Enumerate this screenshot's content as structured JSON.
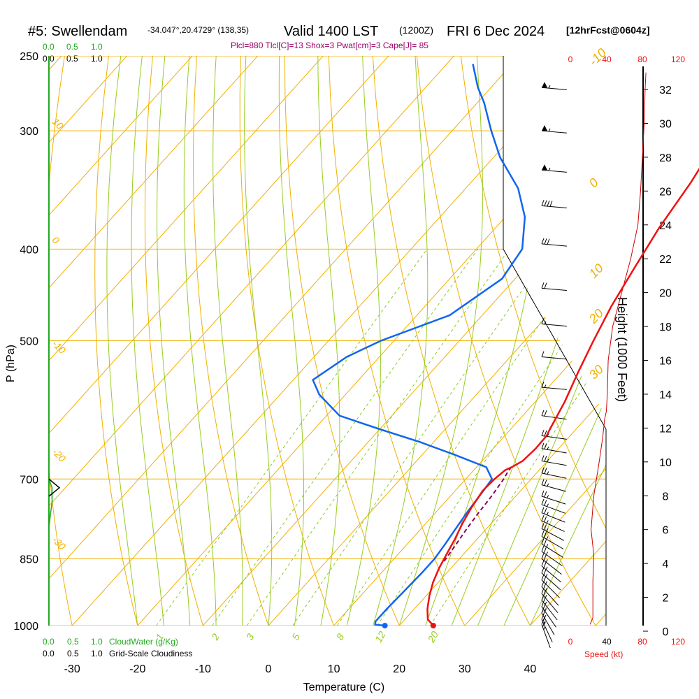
{
  "header": {
    "station": "#5: Swellendam",
    "coords": "-34.047°,20.4729° (138,35)",
    "valid": "Valid 1400 LST",
    "utc": "(1200Z)",
    "date": "FRI 6 Dec 2024",
    "forecast": "[12hrFcst@0604z]"
  },
  "params": "Plcl=880 Tlcl[C]=13 Shox=3 Pwat[cm]=3 Cape[J]= 85",
  "colors": {
    "temperature": "#ee1111",
    "dewpoint": "#1166ee",
    "parcel": "#880066",
    "isotherm": "#f0b000",
    "dry_adiabat": "#f0b000",
    "moist_adiabat": "#99cc22",
    "mixing_ratio": "#88cc22",
    "cloud_water": "#22aa22",
    "wind_speed": "#cc0000",
    "params_text": "#990066"
  },
  "chart_data": {
    "type": "line",
    "title": "#5: Swellendam -34.047°,20.4729° (138,35) Valid 1400 LST (1200Z) FRI 6 Dec 2024 [12hrFcst@0604z]",
    "xlabel": "Temperature (C)",
    "ylabel": "P (hPa)",
    "y2label": "Height (1000 Feet)",
    "x_ticks": [
      "-30",
      "-20",
      "-10",
      "0",
      "10",
      "20",
      "30",
      "40"
    ],
    "y_ticks": [
      "250",
      "300",
      "400",
      "500",
      "700",
      "850",
      "1000"
    ],
    "y2_ticks": [
      "0",
      "2",
      "4",
      "6",
      "8",
      "10",
      "12",
      "14",
      "16",
      "18",
      "20",
      "22",
      "24",
      "26",
      "28",
      "30",
      "32"
    ],
    "isotherm_labels": [
      "-10",
      "0",
      "10",
      "20",
      "30"
    ],
    "isotherm_label_temps": [
      -10,
      0,
      10,
      20,
      30
    ],
    "dry_adiabat_labels": [
      "10",
      "0",
      "-10",
      "-20",
      "-30"
    ],
    "mixing_ratio_labels": [
      "1",
      "2",
      "3",
      "5",
      "8",
      "12",
      "20"
    ],
    "mixing_ratio_values": [
      1,
      2,
      3,
      5,
      8,
      12,
      20
    ],
    "top_scale_green": [
      "0.0",
      "0.5",
      "1.0"
    ],
    "top_scale_black": [
      "0.0",
      "0.5",
      "1.0"
    ],
    "bottom_cloudwater": {
      "ticks": [
        "0.0",
        "0.5",
        "1.0"
      ],
      "label": "CloudWater (g/Kg)"
    },
    "bottom_cloudiness": {
      "ticks": [
        "0.0",
        "0.5",
        "1.0"
      ],
      "label": "Grid-Scale Cloudiness"
    },
    "speed_scale": {
      "ticks": [
        "0",
        "40",
        "80",
        "120"
      ],
      "label": "Speed (kt)"
    },
    "pressure_range": [
      250,
      1000
    ],
    "temp_range": [
      -33.5,
      45
    ],
    "series": [
      {
        "key": "temperature",
        "points": [
          [
            25.2,
            1000
          ],
          [
            23.5,
            985
          ],
          [
            22.0,
            960
          ],
          [
            20.5,
            930
          ],
          [
            19.2,
            900
          ],
          [
            18.2,
            870
          ],
          [
            17.4,
            840
          ],
          [
            16.6,
            810
          ],
          [
            15.6,
            780
          ],
          [
            14.8,
            750
          ],
          [
            14.2,
            720
          ],
          [
            14.4,
            700
          ],
          [
            14.8,
            685
          ],
          [
            15.4,
            680
          ],
          [
            16.2,
            670
          ],
          [
            16.5,
            650
          ],
          [
            16.4,
            630
          ],
          [
            16.0,
            620
          ],
          [
            14.5,
            580
          ],
          [
            12.5,
            540
          ],
          [
            10.5,
            500
          ],
          [
            8.5,
            460
          ],
          [
            6.8,
            420
          ],
          [
            5.0,
            380
          ],
          [
            3.6,
            340
          ],
          [
            2.0,
            310
          ],
          [
            -0.5,
            295
          ],
          [
            -3.5,
            282
          ],
          [
            -6.5,
            269
          ],
          [
            -10.0,
            256
          ]
        ]
      },
      {
        "key": "dewpoint",
        "points": [
          [
            17.8,
            1000
          ],
          [
            16.2,
            998
          ],
          [
            15.8,
            990
          ],
          [
            15.8,
            960
          ],
          [
            16.0,
            920
          ],
          [
            16.2,
            880
          ],
          [
            16.2,
            850
          ],
          [
            15.8,
            820
          ],
          [
            15.3,
            790
          ],
          [
            14.8,
            760
          ],
          [
            14.3,
            720
          ],
          [
            14.0,
            700
          ],
          [
            11.5,
            680
          ],
          [
            5.0,
            660
          ],
          [
            -2.0,
            640
          ],
          [
            -10.0,
            620
          ],
          [
            -18.0,
            600
          ],
          [
            -24.0,
            570
          ],
          [
            -27.0,
            550
          ],
          [
            -25.0,
            520
          ],
          [
            -22.0,
            500
          ],
          [
            -15.0,
            470
          ],
          [
            -12.0,
            430
          ],
          [
            -13.0,
            400
          ],
          [
            -17.0,
            370
          ],
          [
            -22.0,
            345
          ],
          [
            -29.0,
            320
          ],
          [
            -34.0,
            300
          ],
          [
            -39.0,
            280
          ],
          [
            -42.0,
            270
          ],
          [
            -46.0,
            255
          ]
        ]
      },
      {
        "key": "parcel",
        "points": [
          [
            18.0,
            855
          ],
          [
            17.5,
            820
          ],
          [
            17.0,
            790
          ],
          [
            16.6,
            760
          ],
          [
            16.3,
            730
          ],
          [
            15.8,
            700
          ],
          [
            15.5,
            690
          ],
          [
            15.3,
            680
          ]
        ]
      },
      {
        "key": "wind_speed",
        "note": "speed in kt, height in kft",
        "points": [
          [
            22,
            0.4
          ],
          [
            25,
            0.8
          ],
          [
            25,
            1.5
          ],
          [
            25,
            3.0
          ],
          [
            26,
            4.5
          ],
          [
            23,
            6.0
          ],
          [
            26,
            8.0
          ],
          [
            32,
            10.0
          ],
          [
            36,
            11.5
          ],
          [
            38,
            12.5
          ],
          [
            40,
            13.0
          ],
          [
            41,
            14.0
          ],
          [
            42,
            16.0
          ],
          [
            47,
            18.0
          ],
          [
            57,
            20.0
          ],
          [
            67,
            22.0
          ],
          [
            75,
            24.0
          ],
          [
            78,
            26.0
          ],
          [
            80,
            28.0
          ],
          [
            82,
            30.0
          ],
          [
            83,
            32.0
          ],
          [
            84,
            33.0
          ]
        ]
      },
      {
        "key": "cloud_water",
        "note": "g/kg, pressure hPa",
        "points": [
          [
            0,
            700
          ],
          [
            0.3,
            715
          ],
          [
            0.3,
            740
          ],
          [
            0.1,
            770
          ],
          [
            0,
            790
          ]
        ]
      },
      {
        "key": "cloudiness",
        "note": "fraction, pressure hPa",
        "points": [
          [
            0,
            700
          ],
          [
            1,
            715
          ],
          [
            0,
            730
          ]
        ]
      }
    ],
    "winds": [
      {
        "p": 270,
        "spd": 55,
        "dir": 275
      },
      {
        "p": 300,
        "spd": 55,
        "dir": 275
      },
      {
        "p": 330,
        "spd": 55,
        "dir": 275
      },
      {
        "p": 360,
        "spd": 40,
        "dir": 275
      },
      {
        "p": 395,
        "spd": 30,
        "dir": 275
      },
      {
        "p": 440,
        "spd": 20,
        "dir": 275
      },
      {
        "p": 480,
        "spd": 15,
        "dir": 275
      },
      {
        "p": 520,
        "spd": 10,
        "dir": 275
      },
      {
        "p": 560,
        "spd": 15,
        "dir": 275
      },
      {
        "p": 600,
        "spd": 20,
        "dir": 278
      },
      {
        "p": 630,
        "spd": 25,
        "dir": 278
      },
      {
        "p": 650,
        "spd": 25,
        "dir": 280
      },
      {
        "p": 670,
        "spd": 25,
        "dir": 280
      },
      {
        "p": 690,
        "spd": 25,
        "dir": 282
      },
      {
        "p": 710,
        "spd": 25,
        "dir": 285
      },
      {
        "p": 730,
        "spd": 25,
        "dir": 288
      },
      {
        "p": 745,
        "spd": 25,
        "dir": 290
      },
      {
        "p": 760,
        "spd": 25,
        "dir": 292
      },
      {
        "p": 775,
        "spd": 25,
        "dir": 295
      },
      {
        "p": 790,
        "spd": 25,
        "dir": 298
      },
      {
        "p": 805,
        "spd": 25,
        "dir": 300
      },
      {
        "p": 820,
        "spd": 25,
        "dir": 302
      },
      {
        "p": 835,
        "spd": 25,
        "dir": 305
      },
      {
        "p": 850,
        "spd": 25,
        "dir": 308
      },
      {
        "p": 865,
        "spd": 25,
        "dir": 310
      },
      {
        "p": 880,
        "spd": 25,
        "dir": 312
      },
      {
        "p": 895,
        "spd": 25,
        "dir": 315
      },
      {
        "p": 910,
        "spd": 25,
        "dir": 318
      },
      {
        "p": 925,
        "spd": 25,
        "dir": 320
      },
      {
        "p": 940,
        "spd": 25,
        "dir": 322
      },
      {
        "p": 955,
        "spd": 25,
        "dir": 325
      },
      {
        "p": 970,
        "spd": 25,
        "dir": 330
      },
      {
        "p": 985,
        "spd": 25,
        "dir": 335
      },
      {
        "p": 997,
        "spd": 25,
        "dir": 340
      }
    ],
    "surface_points": {
      "temperature": [
        25.2,
        1000
      ],
      "dewpoint": [
        17.8,
        1000
      ]
    }
  }
}
